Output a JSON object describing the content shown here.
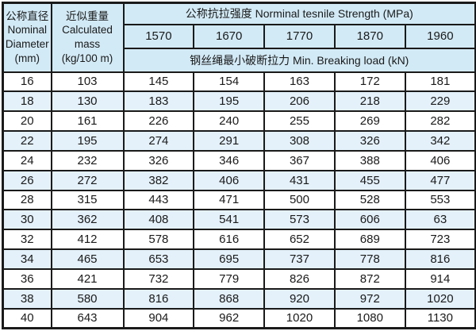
{
  "table": {
    "columns": {
      "diameter": {
        "zh": "公称直径",
        "en1": "Nominal",
        "en2": "Diameter",
        "unit": "(mm)"
      },
      "mass": {
        "zh": "近似重量",
        "en1": "Calculated",
        "en2": "mass",
        "unit": "(kg/100 m)"
      },
      "strength_header": "公称抗拉强度 Norminal tesnile Strength (MPa)",
      "strength_values": [
        "1570",
        "1670",
        "1770",
        "1870",
        "1960"
      ],
      "breaking_load_header": "钢丝绳最小破断拉力 Min. Breaking load (kN)"
    },
    "rows": [
      {
        "diameter": "16",
        "mass": "103",
        "loads": [
          "145",
          "154",
          "163",
          "172",
          "181"
        ]
      },
      {
        "diameter": "18",
        "mass": "130",
        "loads": [
          "183",
          "195",
          "206",
          "218",
          "229"
        ]
      },
      {
        "diameter": "20",
        "mass": "161",
        "loads": [
          "226",
          "240",
          "255",
          "269",
          "282"
        ]
      },
      {
        "diameter": "22",
        "mass": "195",
        "loads": [
          "274",
          "291",
          "308",
          "326",
          "342"
        ]
      },
      {
        "diameter": "24",
        "mass": "232",
        "loads": [
          "326",
          "346",
          "367",
          "388",
          "406"
        ]
      },
      {
        "diameter": "26",
        "mass": "272",
        "loads": [
          "382",
          "406",
          "431",
          "455",
          "477"
        ]
      },
      {
        "diameter": "28",
        "mass": "315",
        "loads": [
          "443",
          "471",
          "500",
          "528",
          "553"
        ]
      },
      {
        "diameter": "30",
        "mass": "362",
        "loads": [
          "408",
          "541",
          "573",
          "606",
          "63"
        ]
      },
      {
        "diameter": "32",
        "mass": "412",
        "loads": [
          "578",
          "616",
          "652",
          "689",
          "723"
        ]
      },
      {
        "diameter": "34",
        "mass": "465",
        "loads": [
          "653",
          "695",
          "737",
          "778",
          "816"
        ]
      },
      {
        "diameter": "36",
        "mass": "421",
        "loads": [
          "732",
          "779",
          "826",
          "872",
          "914"
        ]
      },
      {
        "diameter": "38",
        "mass": "580",
        "loads": [
          "816",
          "868",
          "920",
          "972",
          "1020"
        ]
      },
      {
        "diameter": "40",
        "mass": "643",
        "loads": [
          "904",
          "962",
          "1020",
          "1080",
          "1130"
        ]
      }
    ]
  },
  "chart_data": {
    "type": "table",
    "title": "公称抗拉强度 Norminal tesnile Strength (MPa) — 钢丝绳最小破断拉力 Min. Breaking load (kN)",
    "columns": [
      "公称直径 Nominal Diameter (mm)",
      "近似重量 Calculated mass (kg/100 m)",
      "1570",
      "1670",
      "1770",
      "1870",
      "1960"
    ],
    "rows": [
      [
        16,
        103,
        145,
        154,
        163,
        172,
        181
      ],
      [
        18,
        130,
        183,
        195,
        206,
        218,
        229
      ],
      [
        20,
        161,
        226,
        240,
        255,
        269,
        282
      ],
      [
        22,
        195,
        274,
        291,
        308,
        326,
        342
      ],
      [
        24,
        232,
        326,
        346,
        367,
        388,
        406
      ],
      [
        26,
        272,
        382,
        406,
        431,
        455,
        477
      ],
      [
        28,
        315,
        443,
        471,
        500,
        528,
        553
      ],
      [
        30,
        362,
        408,
        541,
        573,
        606,
        63
      ],
      [
        32,
        412,
        578,
        616,
        652,
        689,
        723
      ],
      [
        34,
        465,
        653,
        695,
        737,
        778,
        816
      ],
      [
        36,
        421,
        732,
        779,
        826,
        872,
        914
      ],
      [
        38,
        580,
        816,
        868,
        920,
        972,
        1020
      ],
      [
        40,
        643,
        904,
        962,
        1020,
        1080,
        1130
      ]
    ]
  },
  "colors": {
    "header_bg": "#d2eaf6",
    "stripe_bg": "#e4f1fa",
    "row_bg": "#ffffff",
    "border": "#1a1a1a",
    "text": "#1a1a1a"
  }
}
